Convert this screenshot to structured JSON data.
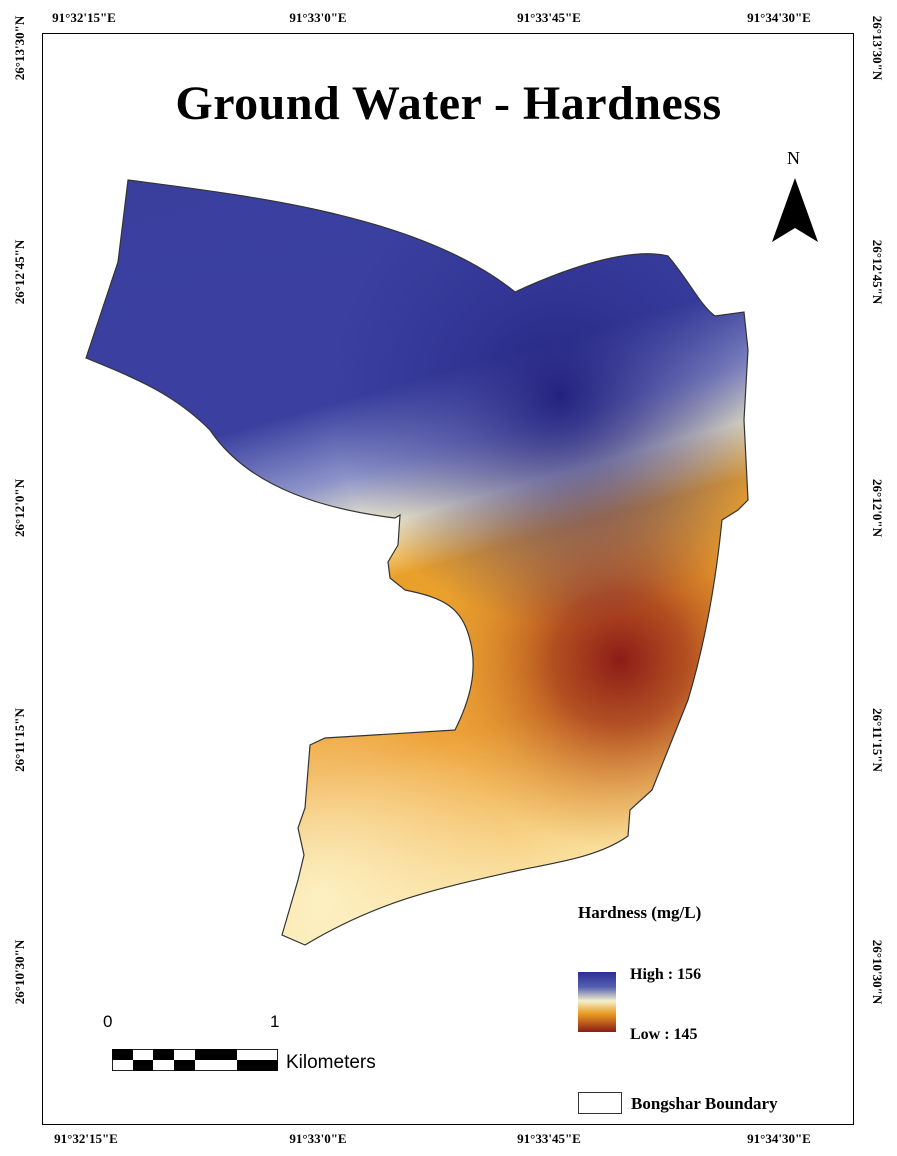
{
  "title": "Ground Water - Hardness",
  "north_label": "N",
  "grid": {
    "longitudes": [
      "91°32'15\"E",
      "91°33'0\"E",
      "91°33'45\"E",
      "91°34'30\"E"
    ],
    "latitudes": [
      "26°13'30\"N",
      "26°12'45\"N",
      "26°12'0\"N",
      "26°11'15\"N",
      "26°10'30\"N"
    ]
  },
  "legend": {
    "title": "Hardness (mg/L)",
    "high_label": "High : 156",
    "low_label": "Low : 145",
    "high_value": 156,
    "low_value": 145,
    "boundary_label": "Bongshar Boundary",
    "colors": {
      "high": "#2d2d96",
      "mid": "#f3f0cf",
      "orange": "#e89a1f",
      "low": "#8b1c18"
    }
  },
  "scale": {
    "start_label": "0",
    "end_label": "1",
    "unit": "Kilometers"
  }
}
